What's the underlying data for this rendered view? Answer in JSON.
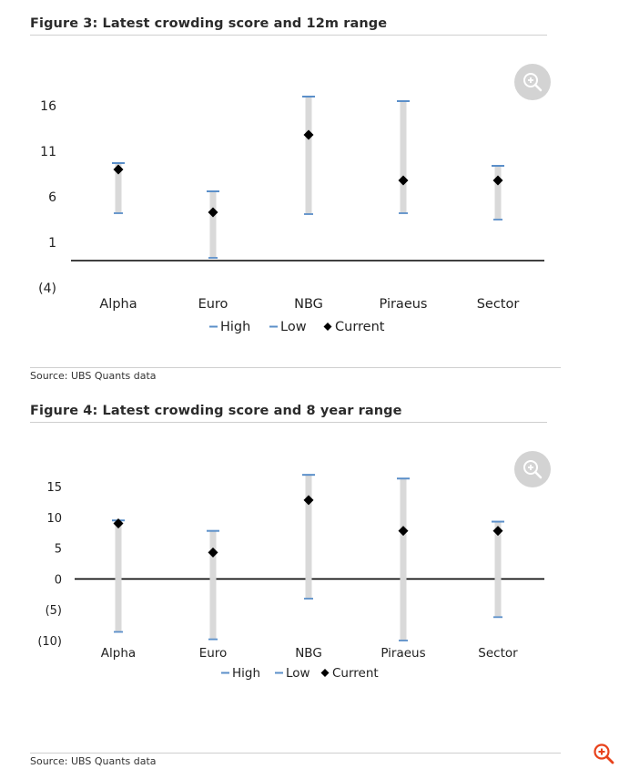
{
  "colors": {
    "high_low_marker": "#5b8fc9",
    "range_bar": "#d9d9d9",
    "current_marker": "#000000",
    "zero_line": "#000000",
    "zoom_button": "#d3d3d3",
    "corner_icon": "#e8421b"
  },
  "icons": {
    "zoom": "zoom-in-icon",
    "corner": "zoom-in-icon"
  },
  "figures": [
    {
      "title": "Figure 3: Latest crowding score and 12m range",
      "source": "Source: UBS Quants data",
      "legend": {
        "high": "High",
        "low": "Low",
        "current": "Current"
      }
    },
    {
      "title": "Figure 4: Latest crowding score and 8 year range",
      "source": "Source: UBS Quants data",
      "legend": {
        "high": "High",
        "low": "Low",
        "current": "Current"
      }
    }
  ],
  "chart_data": [
    {
      "type": "range",
      "title": "Figure 3: Latest crowding score and 12m range",
      "categories": [
        "Alpha",
        "Euro",
        "NBG",
        "Piraeus",
        "Sector"
      ],
      "series": [
        {
          "name": "High",
          "values": [
            9.7,
            6.6,
            17.0,
            16.5,
            9.4
          ]
        },
        {
          "name": "Low",
          "values": [
            4.2,
            -0.7,
            4.1,
            4.2,
            3.5
          ]
        },
        {
          "name": "Current",
          "values": [
            9.0,
            4.3,
            12.8,
            7.8,
            7.8
          ]
        }
      ],
      "yticks": [
        16,
        11,
        6,
        1,
        -4
      ],
      "ytick_labels": [
        "16",
        "11",
        "6",
        "1",
        "(4)"
      ],
      "ylim": [
        -4,
        19
      ],
      "legend_position": "bottom",
      "grid": false
    },
    {
      "type": "range",
      "title": "Figure 4: Latest crowding score and 8 year range",
      "categories": [
        "Alpha",
        "Euro",
        "NBG",
        "Piraeus",
        "Sector"
      ],
      "series": [
        {
          "name": "High",
          "values": [
            9.5,
            7.8,
            16.9,
            16.3,
            9.3
          ]
        },
        {
          "name": "Low",
          "values": [
            -8.6,
            -9.8,
            -3.2,
            -10.0,
            -6.2
          ]
        },
        {
          "name": "Current",
          "values": [
            9.0,
            4.3,
            12.8,
            7.8,
            7.8
          ]
        }
      ],
      "yticks": [
        15,
        10,
        5,
        0,
        -5,
        -10
      ],
      "ytick_labels": [
        "15",
        "10",
        "5",
        "0",
        "(5)",
        "(10)"
      ],
      "ylim": [
        -10,
        18
      ],
      "legend_position": "bottom",
      "grid": false
    }
  ]
}
